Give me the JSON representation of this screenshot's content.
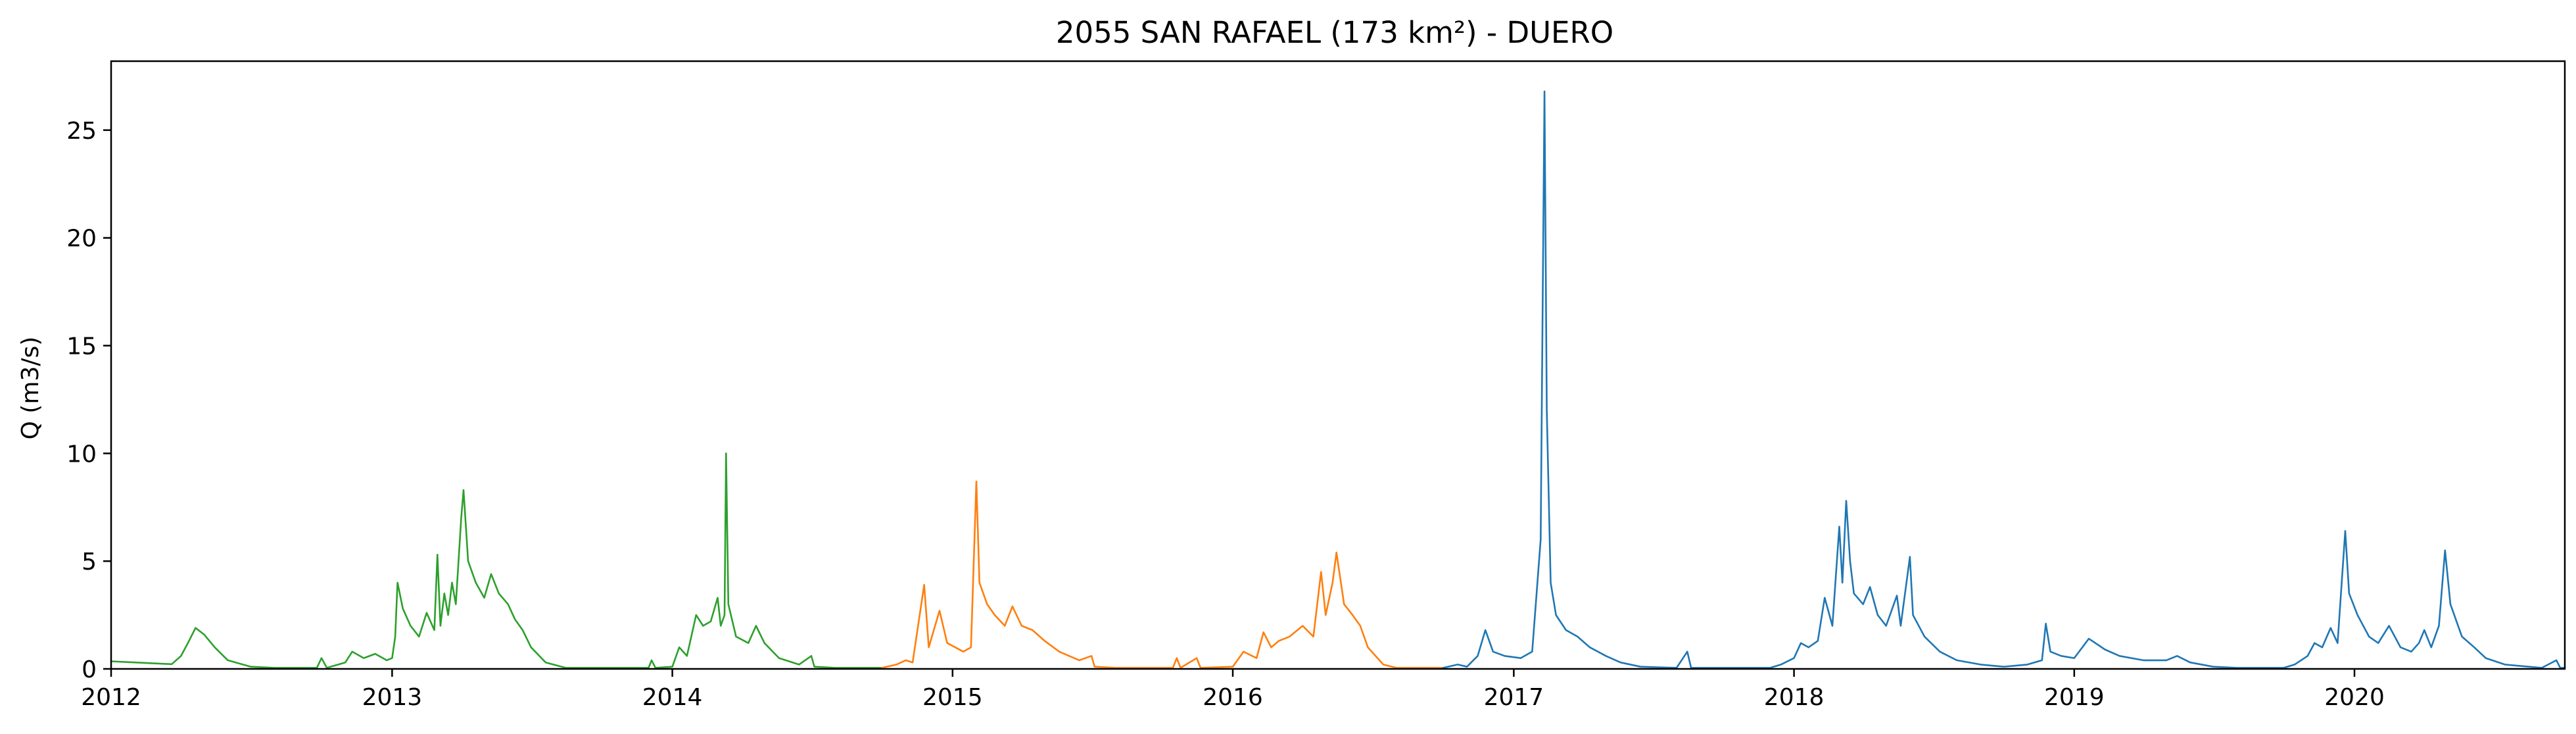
{
  "chart_data": {
    "type": "line",
    "title": "2055 SAN RAFAEL (173 km²) - DUERO",
    "xlabel": "",
    "ylabel": "Q (m3/s)",
    "xlim": [
      "2012-01-01",
      "2020-10-01"
    ],
    "ylim": [
      0,
      28.2
    ],
    "grid": false,
    "x_ticks": [
      "2012",
      "2013",
      "2014",
      "2015",
      "2016",
      "2017",
      "2018",
      "2019",
      "2020"
    ],
    "y_ticks": [
      "0",
      "5",
      "10",
      "15",
      "20",
      "25"
    ],
    "y_tick_values": [
      0,
      5,
      10,
      15,
      20,
      25
    ],
    "series": [
      {
        "color": "#2ca02c",
        "points": [
          [
            "2012-01-01",
            0.35
          ],
          [
            "2012-02-01",
            0.3
          ],
          [
            "2012-03-01",
            0.25
          ],
          [
            "2012-03-20",
            0.22
          ],
          [
            "2012-04-01",
            0.6
          ],
          [
            "2012-04-10",
            1.2
          ],
          [
            "2012-04-20",
            1.9
          ],
          [
            "2012-05-01",
            1.6
          ],
          [
            "2012-05-15",
            1.0
          ],
          [
            "2012-06-01",
            0.4
          ],
          [
            "2012-07-01",
            0.1
          ],
          [
            "2012-08-01",
            0.05
          ],
          [
            "2012-09-25",
            0.05
          ],
          [
            "2012-10-01",
            0.5
          ],
          [
            "2012-10-08",
            0.05
          ],
          [
            "2012-11-01",
            0.3
          ],
          [
            "2012-11-10",
            0.8
          ],
          [
            "2012-11-25",
            0.5
          ],
          [
            "2012-12-10",
            0.7
          ],
          [
            "2012-12-25",
            0.4
          ],
          [
            "2013-01-01",
            0.5
          ],
          [
            "2013-01-05",
            1.5
          ],
          [
            "2013-01-08",
            4.0
          ],
          [
            "2013-01-15",
            2.8
          ],
          [
            "2013-01-25",
            2.0
          ],
          [
            "2013-02-05",
            1.5
          ],
          [
            "2013-02-15",
            2.6
          ],
          [
            "2013-02-25",
            1.8
          ],
          [
            "2013-03-01",
            5.3
          ],
          [
            "2013-03-05",
            2.0
          ],
          [
            "2013-03-10",
            3.5
          ],
          [
            "2013-03-15",
            2.5
          ],
          [
            "2013-03-20",
            4.0
          ],
          [
            "2013-03-25",
            3.0
          ],
          [
            "2013-04-01",
            7.0
          ],
          [
            "2013-04-04",
            8.3
          ],
          [
            "2013-04-10",
            5.0
          ],
          [
            "2013-04-20",
            4.0
          ],
          [
            "2013-05-01",
            3.3
          ],
          [
            "2013-05-10",
            4.4
          ],
          [
            "2013-05-20",
            3.5
          ],
          [
            "2013-06-01",
            3.0
          ],
          [
            "2013-06-10",
            2.3
          ],
          [
            "2013-06-20",
            1.8
          ],
          [
            "2013-07-01",
            1.0
          ],
          [
            "2013-07-20",
            0.3
          ],
          [
            "2013-08-15",
            0.05
          ],
          [
            "2013-12-01",
            0.05
          ],
          [
            "2013-12-05",
            0.4
          ],
          [
            "2013-12-10",
            0.05
          ],
          [
            "2014-01-01",
            0.1
          ],
          [
            "2014-01-10",
            1.0
          ],
          [
            "2014-01-20",
            0.6
          ],
          [
            "2014-02-01",
            2.5
          ],
          [
            "2014-02-10",
            2.0
          ],
          [
            "2014-02-20",
            2.2
          ],
          [
            "2014-03-01",
            3.3
          ],
          [
            "2014-03-05",
            2.0
          ],
          [
            "2014-03-10",
            2.5
          ],
          [
            "2014-03-12",
            10.0
          ],
          [
            "2014-03-15",
            3.0
          ],
          [
            "2014-03-25",
            1.5
          ],
          [
            "2014-04-10",
            1.2
          ],
          [
            "2014-04-20",
            2.0
          ],
          [
            "2014-05-01",
            1.2
          ],
          [
            "2014-05-20",
            0.5
          ],
          [
            "2014-06-15",
            0.2
          ],
          [
            "2014-07-01",
            0.6
          ],
          [
            "2014-07-05",
            0.1
          ],
          [
            "2014-08-01",
            0.05
          ],
          [
            "2014-10-01",
            0.05
          ]
        ]
      },
      {
        "color": "#ff7f0e",
        "points": [
          [
            "2014-10-01",
            0.05
          ],
          [
            "2014-10-20",
            0.2
          ],
          [
            "2014-11-01",
            0.4
          ],
          [
            "2014-11-10",
            0.3
          ],
          [
            "2014-11-25",
            3.9
          ],
          [
            "2014-12-01",
            1.0
          ],
          [
            "2014-12-15",
            2.7
          ],
          [
            "2014-12-25",
            1.2
          ],
          [
            "2015-01-15",
            0.8
          ],
          [
            "2015-01-25",
            1.0
          ],
          [
            "2015-02-01",
            8.7
          ],
          [
            "2015-02-05",
            4.0
          ],
          [
            "2015-02-15",
            3.0
          ],
          [
            "2015-02-25",
            2.5
          ],
          [
            "2015-03-10",
            2.0
          ],
          [
            "2015-03-20",
            2.9
          ],
          [
            "2015-04-01",
            2.0
          ],
          [
            "2015-04-15",
            1.8
          ],
          [
            "2015-05-01",
            1.3
          ],
          [
            "2015-05-20",
            0.8
          ],
          [
            "2015-06-15",
            0.4
          ],
          [
            "2015-07-01",
            0.6
          ],
          [
            "2015-07-05",
            0.1
          ],
          [
            "2015-08-01",
            0.05
          ],
          [
            "2015-10-15",
            0.05
          ],
          [
            "2015-10-20",
            0.5
          ],
          [
            "2015-10-25",
            0.05
          ],
          [
            "2015-11-15",
            0.5
          ],
          [
            "2015-11-20",
            0.05
          ],
          [
            "2016-01-01",
            0.1
          ],
          [
            "2016-01-15",
            0.8
          ],
          [
            "2016-02-01",
            0.5
          ],
          [
            "2016-02-10",
            1.7
          ],
          [
            "2016-02-20",
            1.0
          ],
          [
            "2016-03-01",
            1.3
          ],
          [
            "2016-03-15",
            1.5
          ],
          [
            "2016-04-01",
            2.0
          ],
          [
            "2016-04-15",
            1.5
          ],
          [
            "2016-04-25",
            4.5
          ],
          [
            "2016-05-01",
            2.5
          ],
          [
            "2016-05-10",
            4.0
          ],
          [
            "2016-05-15",
            5.4
          ],
          [
            "2016-05-25",
            3.0
          ],
          [
            "2016-06-05",
            2.5
          ],
          [
            "2016-06-15",
            2.0
          ],
          [
            "2016-06-25",
            1.0
          ],
          [
            "2016-07-15",
            0.2
          ],
          [
            "2016-08-01",
            0.05
          ],
          [
            "2016-10-01",
            0.05
          ]
        ]
      },
      {
        "color": "#1f77b4",
        "points": [
          [
            "2016-10-01",
            0.05
          ],
          [
            "2016-10-20",
            0.2
          ],
          [
            "2016-11-01",
            0.1
          ],
          [
            "2016-11-15",
            0.6
          ],
          [
            "2016-11-25",
            1.8
          ],
          [
            "2016-12-05",
            0.8
          ],
          [
            "2016-12-20",
            0.6
          ],
          [
            "2017-01-10",
            0.5
          ],
          [
            "2017-01-25",
            0.8
          ],
          [
            "2017-02-05",
            6.0
          ],
          [
            "2017-02-10",
            26.8
          ],
          [
            "2017-02-13",
            12.0
          ],
          [
            "2017-02-18",
            4.0
          ],
          [
            "2017-02-25",
            2.5
          ],
          [
            "2017-03-10",
            1.8
          ],
          [
            "2017-03-25",
            1.5
          ],
          [
            "2017-04-10",
            1.0
          ],
          [
            "2017-05-01",
            0.6
          ],
          [
            "2017-05-20",
            0.3
          ],
          [
            "2017-06-15",
            0.1
          ],
          [
            "2017-08-01",
            0.05
          ],
          [
            "2017-08-15",
            0.8
          ],
          [
            "2017-08-20",
            0.05
          ],
          [
            "2017-12-01",
            0.05
          ],
          [
            "2017-12-15",
            0.2
          ],
          [
            "2018-01-01",
            0.5
          ],
          [
            "2018-01-10",
            1.2
          ],
          [
            "2018-01-20",
            1.0
          ],
          [
            "2018-02-01",
            1.3
          ],
          [
            "2018-02-10",
            3.3
          ],
          [
            "2018-02-20",
            2.0
          ],
          [
            "2018-03-01",
            6.6
          ],
          [
            "2018-03-05",
            4.0
          ],
          [
            "2018-03-10",
            7.8
          ],
          [
            "2018-03-15",
            5.0
          ],
          [
            "2018-03-20",
            3.5
          ],
          [
            "2018-04-01",
            3.0
          ],
          [
            "2018-04-10",
            3.8
          ],
          [
            "2018-04-20",
            2.5
          ],
          [
            "2018-05-01",
            2.0
          ],
          [
            "2018-05-15",
            3.4
          ],
          [
            "2018-05-20",
            2.0
          ],
          [
            "2018-06-01",
            5.2
          ],
          [
            "2018-06-05",
            2.5
          ],
          [
            "2018-06-20",
            1.5
          ],
          [
            "2018-07-10",
            0.8
          ],
          [
            "2018-08-01",
            0.4
          ],
          [
            "2018-09-01",
            0.2
          ],
          [
            "2018-10-01",
            0.1
          ],
          [
            "2018-11-01",
            0.2
          ],
          [
            "2018-11-20",
            0.4
          ],
          [
            "2018-11-25",
            2.1
          ],
          [
            "2018-12-01",
            0.8
          ],
          [
            "2018-12-15",
            0.6
          ],
          [
            "2019-01-01",
            0.5
          ],
          [
            "2019-01-20",
            1.4
          ],
          [
            "2019-02-10",
            0.9
          ],
          [
            "2019-03-01",
            0.6
          ],
          [
            "2019-04-01",
            0.4
          ],
          [
            "2019-05-01",
            0.4
          ],
          [
            "2019-05-15",
            0.6
          ],
          [
            "2019-06-01",
            0.3
          ],
          [
            "2019-07-01",
            0.1
          ],
          [
            "2019-08-01",
            0.05
          ],
          [
            "2019-10-01",
            0.05
          ],
          [
            "2019-10-15",
            0.2
          ],
          [
            "2019-11-01",
            0.6
          ],
          [
            "2019-11-10",
            1.2
          ],
          [
            "2019-11-20",
            1.0
          ],
          [
            "2019-12-01",
            1.9
          ],
          [
            "2019-12-10",
            1.2
          ],
          [
            "2019-12-20",
            6.4
          ],
          [
            "2019-12-25",
            3.5
          ],
          [
            "2020-01-05",
            2.5
          ],
          [
            "2020-01-20",
            1.5
          ],
          [
            "2020-02-01",
            1.2
          ],
          [
            "2020-02-15",
            2.0
          ],
          [
            "2020-03-01",
            1.0
          ],
          [
            "2020-03-15",
            0.8
          ],
          [
            "2020-03-25",
            1.2
          ],
          [
            "2020-04-01",
            1.8
          ],
          [
            "2020-04-10",
            1.0
          ],
          [
            "2020-04-20",
            2.0
          ],
          [
            "2020-04-28",
            5.5
          ],
          [
            "2020-05-05",
            3.0
          ],
          [
            "2020-05-20",
            1.5
          ],
          [
            "2020-06-05",
            1.0
          ],
          [
            "2020-06-20",
            0.5
          ],
          [
            "2020-07-15",
            0.2
          ],
          [
            "2020-08-15",
            0.1
          ],
          [
            "2020-09-01",
            0.05
          ],
          [
            "2020-09-20",
            0.4
          ],
          [
            "2020-09-25",
            0.05
          ],
          [
            "2020-10-01",
            0.05
          ]
        ]
      }
    ]
  }
}
